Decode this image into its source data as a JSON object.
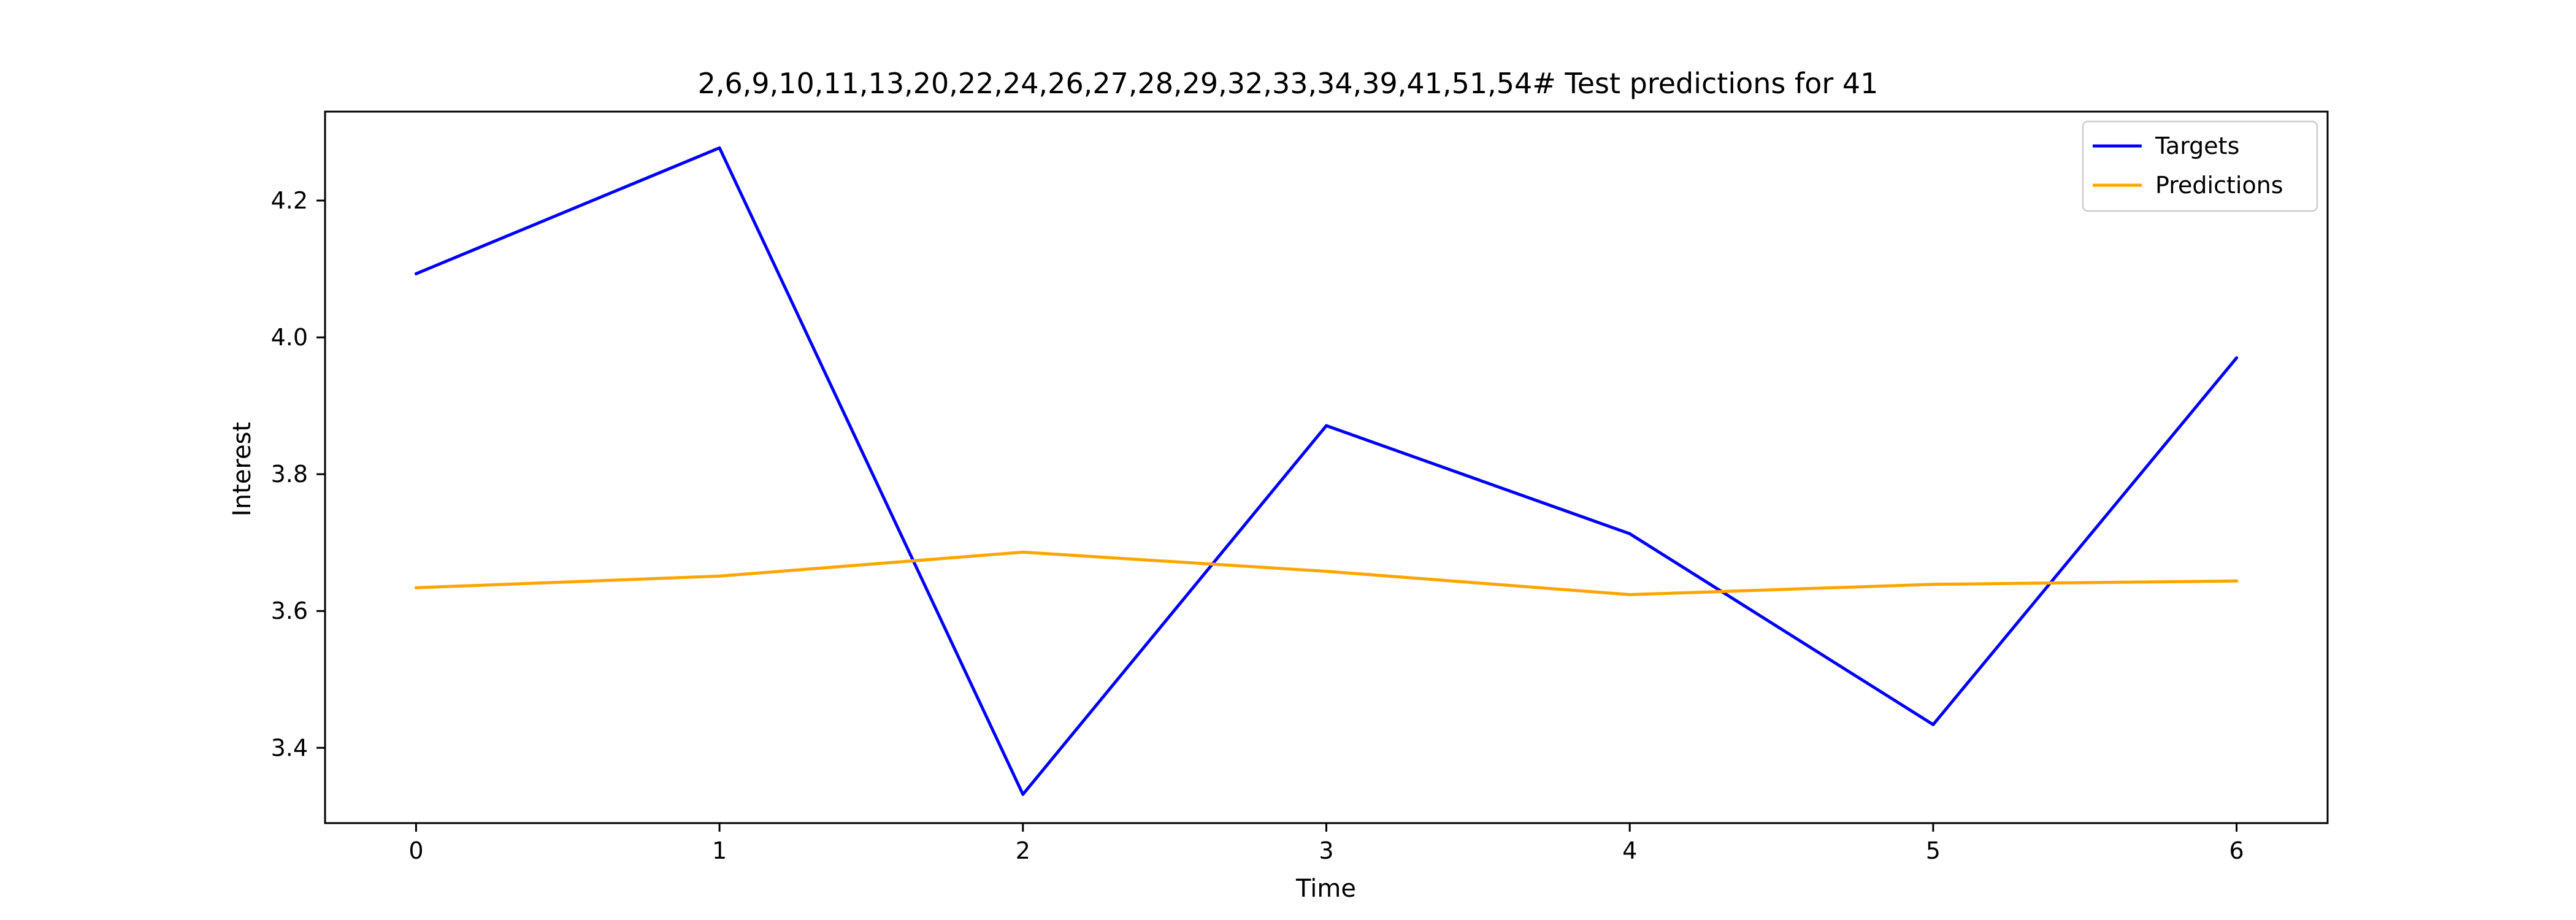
{
  "chart_data": {
    "type": "line",
    "title": "2,6,9,10,11,13,20,22,24,26,27,28,29,32,33,34,39,41,51,54# Test predictions for 41",
    "xlabel": "Time",
    "ylabel": "Interest",
    "x": [
      0,
      1,
      2,
      3,
      4,
      5,
      6
    ],
    "xlim": [
      -0.3,
      6.3
    ],
    "ylim": [
      3.29,
      4.33
    ],
    "xticks": [
      0,
      1,
      2,
      3,
      4,
      5,
      6
    ],
    "yticks": [
      3.4,
      3.6,
      3.8,
      4.0,
      4.2
    ],
    "ytick_labels": [
      "3.4",
      "3.6",
      "3.8",
      "4.0",
      "4.2"
    ],
    "grid": false,
    "legend_position": "top-right",
    "series": [
      {
        "name": "Targets",
        "color": "#0000ff",
        "values": [
          4.093,
          4.277,
          3.332,
          3.871,
          3.713,
          3.434,
          3.97
        ]
      },
      {
        "name": "Predictions",
        "color": "#ffa500",
        "values": [
          3.634,
          3.651,
          3.686,
          3.658,
          3.624,
          3.639,
          3.644
        ]
      }
    ]
  }
}
